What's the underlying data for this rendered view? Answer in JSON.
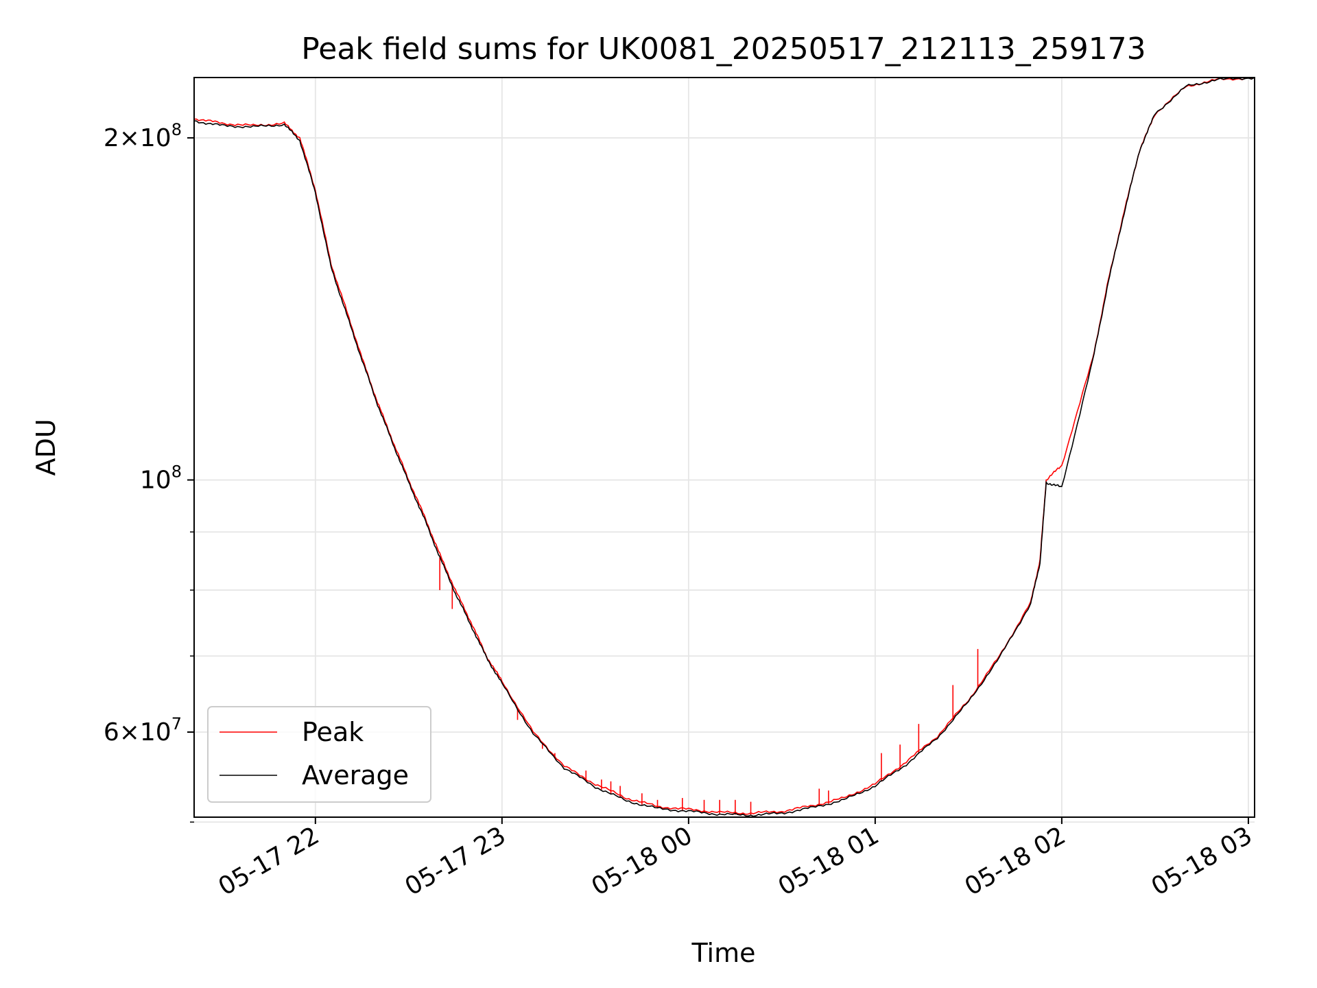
{
  "chart_data": {
    "type": "line",
    "title": "Peak field sums for UK0081_20250517_212113_259173",
    "xlabel": "Time",
    "ylabel": "ADU",
    "yscale": "log",
    "grid": true,
    "legend": {
      "placement": "lower-left",
      "entries": [
        "Peak",
        "Average"
      ]
    },
    "xlim": [
      "2025-05-17T21:21:00",
      "2025-05-18T03:02:00"
    ],
    "ylim": [
      50500000,
      226000000
    ],
    "x_ticks": [
      {
        "t": "2025-05-17T22:00:00",
        "label": "05-17 22"
      },
      {
        "t": "2025-05-17T23:00:00",
        "label": "05-17 23"
      },
      {
        "t": "2025-05-18T00:00:00",
        "label": "05-18 00"
      },
      {
        "t": "2025-05-18T01:00:00",
        "label": "05-18 01"
      },
      {
        "t": "2025-05-18T02:00:00",
        "label": "05-18 02"
      },
      {
        "t": "2025-05-18T03:00:00",
        "label": "05-18 03"
      }
    ],
    "y_major_ticks": [
      {
        "value": 60000000,
        "mantissa": "6",
        "exp": "7"
      },
      {
        "value": 100000000,
        "mantissa": "",
        "exp": "8"
      },
      {
        "value": 200000000,
        "mantissa": "2",
        "exp": "8"
      }
    ],
    "y_minor_ticks": [
      50000000,
      70000000,
      80000000,
      90000000
    ],
    "series": [
      {
        "name": "Peak",
        "color": "#ff0000",
        "x": [
          "2025-05-17T21:21:00",
          "2025-05-17T21:30:00",
          "2025-05-17T21:40:00",
          "2025-05-17T21:50:00",
          "2025-05-17T21:55:00",
          "2025-05-17T22:00:00",
          "2025-05-17T22:05:00",
          "2025-05-17T22:10:00",
          "2025-05-17T22:15:00",
          "2025-05-17T22:20:00",
          "2025-05-17T22:25:00",
          "2025-05-17T22:30:00",
          "2025-05-17T22:35:00",
          "2025-05-17T22:40:00",
          "2025-05-17T22:45:00",
          "2025-05-17T22:50:00",
          "2025-05-17T22:55:00",
          "2025-05-17T23:00:00",
          "2025-05-17T23:10:00",
          "2025-05-17T23:20:00",
          "2025-05-17T23:30:00",
          "2025-05-17T23:40:00",
          "2025-05-17T23:50:00",
          "2025-05-18T00:00:00",
          "2025-05-18T00:10:00",
          "2025-05-18T00:20:00",
          "2025-05-18T00:30:00",
          "2025-05-18T00:40:00",
          "2025-05-18T00:50:00",
          "2025-05-18T01:00:00",
          "2025-05-18T01:10:00",
          "2025-05-18T01:20:00",
          "2025-05-18T01:30:00",
          "2025-05-18T01:40:00",
          "2025-05-18T01:50:00",
          "2025-05-18T01:53:00",
          "2025-05-18T01:55:00",
          "2025-05-18T02:00:00",
          "2025-05-18T02:10:00",
          "2025-05-18T02:15:00",
          "2025-05-18T02:20:00",
          "2025-05-18T02:25:00",
          "2025-05-18T02:30:00",
          "2025-05-18T02:40:00",
          "2025-05-18T02:50:00",
          "2025-05-18T03:02:00"
        ],
        "y": [
          208000000,
          206000000,
          205000000,
          206000000,
          200000000,
          180000000,
          155000000,
          141000000,
          128000000,
          117000000,
          108000000,
          100000000,
          93000000,
          86000000,
          80000000,
          75000000,
          70000000,
          66500000,
          60000000,
          56000000,
          54000000,
          52500000,
          51600000,
          51300000,
          51000000,
          50900000,
          51100000,
          51700000,
          52500000,
          54000000,
          56500000,
          59500000,
          64000000,
          70000000,
          78000000,
          85000000,
          100000000,
          103000000,
          128000000,
          150000000,
          172000000,
          195000000,
          210000000,
          222000000,
          225000000,
          226000000
        ],
        "spikes": [
          {
            "t": "2025-05-17T22:40:00",
            "y": 80000000
          },
          {
            "t": "2025-05-17T22:44:00",
            "y": 77000000
          },
          {
            "t": "2025-05-17T22:55:00",
            "y": 70000000
          },
          {
            "t": "2025-05-17T23:05:00",
            "y": 61500000
          },
          {
            "t": "2025-05-17T23:13:00",
            "y": 58000000
          },
          {
            "t": "2025-05-17T23:17:00",
            "y": 57500000
          },
          {
            "t": "2025-05-17T23:27:00",
            "y": 55500000
          },
          {
            "t": "2025-05-17T23:32:00",
            "y": 54500000
          },
          {
            "t": "2025-05-17T23:35:00",
            "y": 54300000
          },
          {
            "t": "2025-05-17T23:38:00",
            "y": 53800000
          },
          {
            "t": "2025-05-17T23:45:00",
            "y": 53000000
          },
          {
            "t": "2025-05-17T23:50:00",
            "y": 52300000
          },
          {
            "t": "2025-05-17T23:58:00",
            "y": 52500000
          },
          {
            "t": "2025-05-18T00:05:00",
            "y": 52300000
          },
          {
            "t": "2025-05-18T00:10:00",
            "y": 52300000
          },
          {
            "t": "2025-05-18T00:15:00",
            "y": 52300000
          },
          {
            "t": "2025-05-18T00:20:00",
            "y": 52100000
          },
          {
            "t": "2025-05-18T00:42:00",
            "y": 53500000
          },
          {
            "t": "2025-05-18T00:45:00",
            "y": 53300000
          },
          {
            "t": "2025-05-18T01:02:00",
            "y": 57500000
          },
          {
            "t": "2025-05-18T01:08:00",
            "y": 58500000
          },
          {
            "t": "2025-05-18T01:14:00",
            "y": 61000000
          },
          {
            "t": "2025-05-18T01:25:00",
            "y": 66000000
          },
          {
            "t": "2025-05-18T01:33:00",
            "y": 71000000
          }
        ]
      },
      {
        "name": "Average",
        "color": "#000000",
        "x": [
          "2025-05-17T21:21:00",
          "2025-05-17T21:30:00",
          "2025-05-17T21:40:00",
          "2025-05-17T21:50:00",
          "2025-05-17T21:55:00",
          "2025-05-17T22:00:00",
          "2025-05-17T22:05:00",
          "2025-05-17T22:10:00",
          "2025-05-17T22:15:00",
          "2025-05-17T22:20:00",
          "2025-05-17T22:25:00",
          "2025-05-17T22:30:00",
          "2025-05-17T22:35:00",
          "2025-05-17T22:40:00",
          "2025-05-17T22:45:00",
          "2025-05-17T22:50:00",
          "2025-05-17T22:55:00",
          "2025-05-17T23:00:00",
          "2025-05-17T23:10:00",
          "2025-05-17T23:20:00",
          "2025-05-17T23:30:00",
          "2025-05-17T23:40:00",
          "2025-05-17T23:50:00",
          "2025-05-18T00:00:00",
          "2025-05-18T00:10:00",
          "2025-05-18T00:20:00",
          "2025-05-18T00:30:00",
          "2025-05-18T00:40:00",
          "2025-05-18T00:50:00",
          "2025-05-18T01:00:00",
          "2025-05-18T01:10:00",
          "2025-05-18T01:20:00",
          "2025-05-18T01:30:00",
          "2025-05-18T01:40:00",
          "2025-05-18T01:50:00",
          "2025-05-18T01:53:00",
          "2025-05-18T01:55:00",
          "2025-05-18T02:00:00",
          "2025-05-18T02:10:00",
          "2025-05-18T02:15:00",
          "2025-05-18T02:20:00",
          "2025-05-18T02:25:00",
          "2025-05-18T02:30:00",
          "2025-05-18T02:40:00",
          "2025-05-18T02:50:00",
          "2025-05-18T03:02:00"
        ],
        "y": [
          207000000,
          205000000,
          204500000,
          205500000,
          199000000,
          179000000,
          154000000,
          140000000,
          127500000,
          116500000,
          107500000,
          99500000,
          92500000,
          85500000,
          79500000,
          74500000,
          69800000,
          66200000,
          59800000,
          55800000,
          53700000,
          52200000,
          51400000,
          51100000,
          50800000,
          50700000,
          50900000,
          51500000,
          52300000,
          53800000,
          56200000,
          59300000,
          63800000,
          69800000,
          77800000,
          84500000,
          99500000,
          98500000,
          127500000,
          149500000,
          171500000,
          195000000,
          210000000,
          222000000,
          225000000,
          226000000
        ]
      }
    ]
  }
}
